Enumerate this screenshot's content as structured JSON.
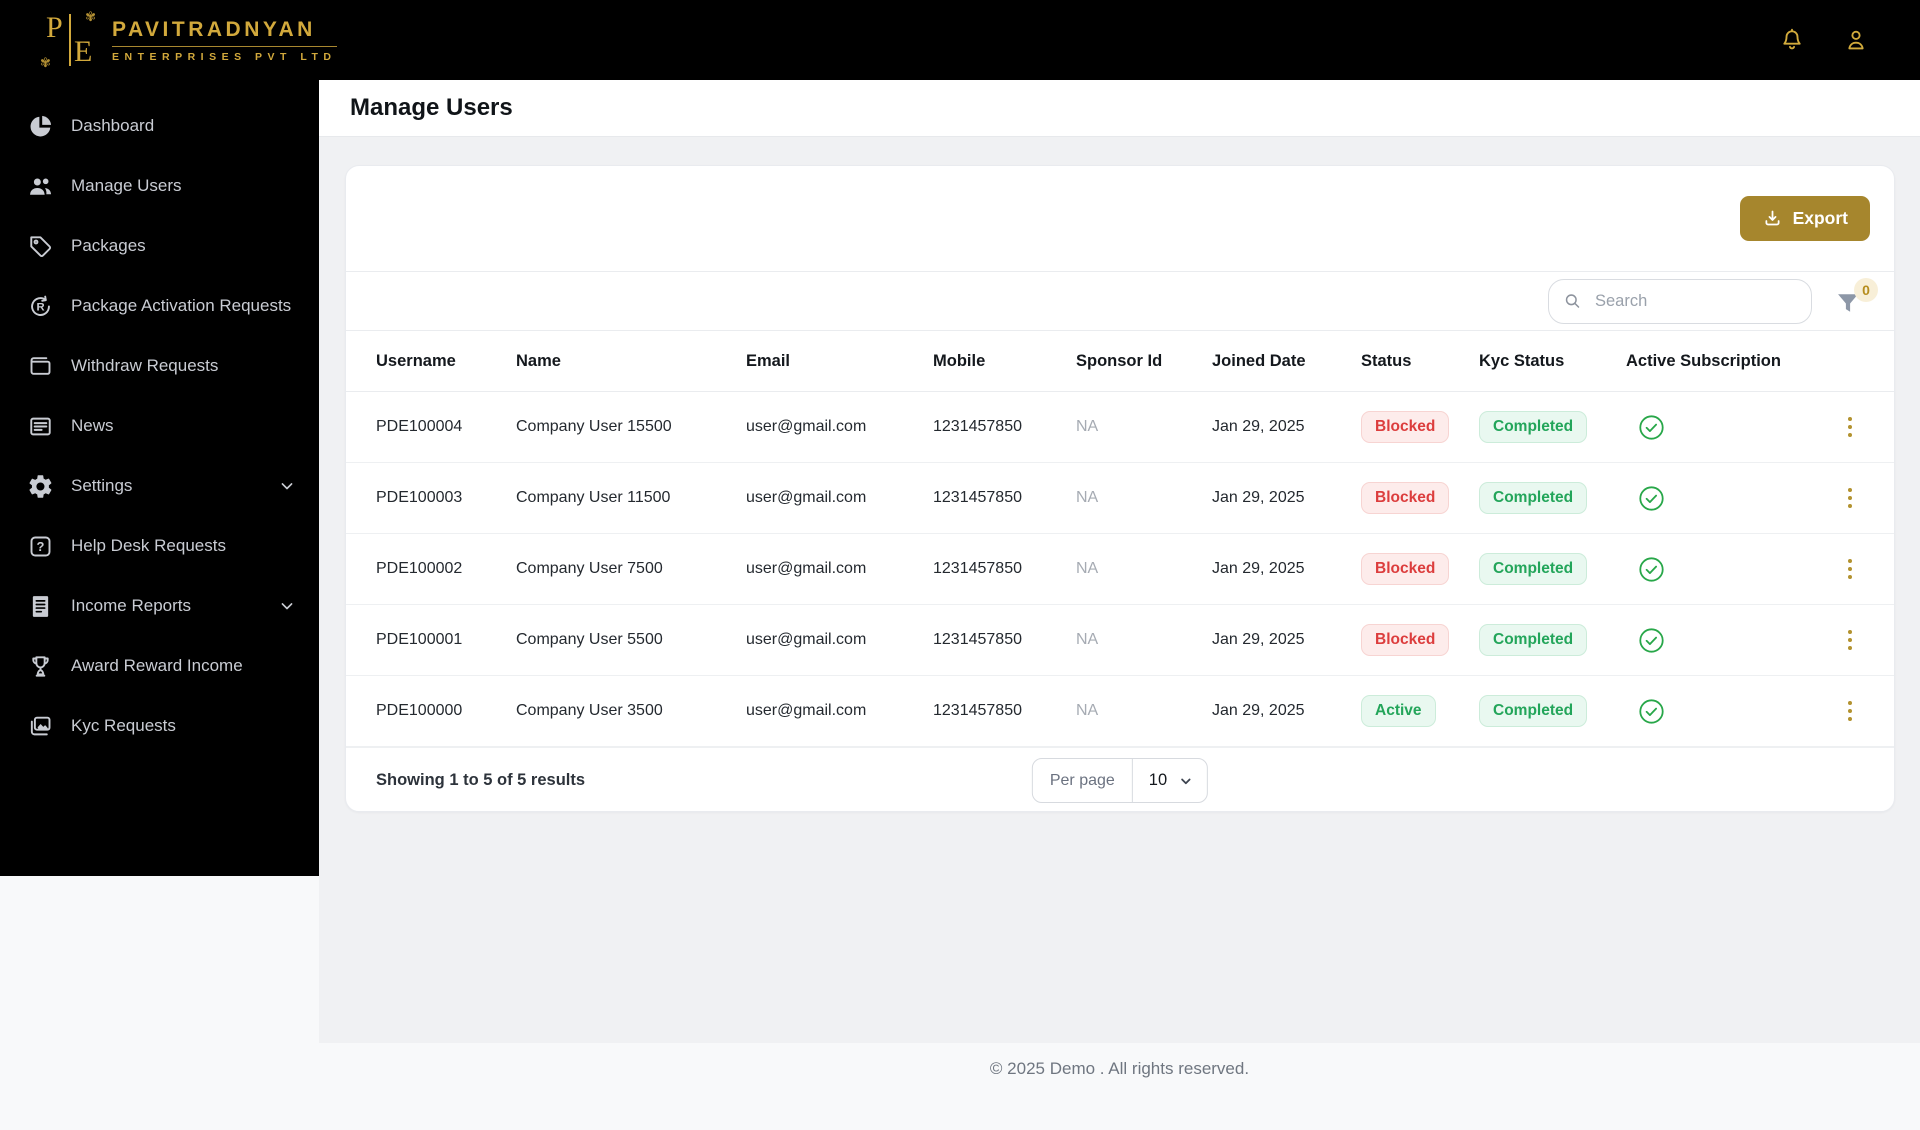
{
  "brand": {
    "mark_p": "P",
    "mark_e": "E",
    "name": "PAVITRADNYAN",
    "subtitle": "ENTERPRISES PVT LTD"
  },
  "topbar": {
    "icons": [
      "notification-bell-icon",
      "user-profile-icon"
    ]
  },
  "sidebar": {
    "items": [
      {
        "label": "Dashboard",
        "icon": "dashboard",
        "expandable": false
      },
      {
        "label": "Manage Users",
        "icon": "users",
        "expandable": false
      },
      {
        "label": "Packages",
        "icon": "tag",
        "expandable": false
      },
      {
        "label": "Package Activation Requests",
        "icon": "activation",
        "expandable": false
      },
      {
        "label": "Withdraw Requests",
        "icon": "wallet",
        "expandable": false
      },
      {
        "label": "News",
        "icon": "news",
        "expandable": false
      },
      {
        "label": "Settings",
        "icon": "gear",
        "expandable": true
      },
      {
        "label": "Help Desk Requests",
        "icon": "help",
        "expandable": false
      },
      {
        "label": "Income Reports",
        "icon": "report",
        "expandable": true
      },
      {
        "label": "Award Reward Income",
        "icon": "trophy",
        "expandable": false
      },
      {
        "label": "Kyc Requests",
        "icon": "images",
        "expandable": false
      }
    ]
  },
  "page": {
    "title": "Manage Users"
  },
  "toolbar": {
    "export_label": "Export"
  },
  "search": {
    "placeholder": "Search",
    "filter_badge": "0"
  },
  "table": {
    "headers": [
      {
        "key": "username",
        "label": "Username"
      },
      {
        "key": "name",
        "label": "Name"
      },
      {
        "key": "email",
        "label": "Email"
      },
      {
        "key": "mobile",
        "label": "Mobile"
      },
      {
        "key": "sponsor_id",
        "label": "Sponsor Id"
      },
      {
        "key": "joined_date",
        "label": "Joined Date"
      },
      {
        "key": "status",
        "label": "Status"
      },
      {
        "key": "kyc_status",
        "label": "Kyc Status"
      },
      {
        "key": "active_subscription",
        "label": "Active Subscription"
      }
    ],
    "rows": [
      {
        "username": "PDE100004",
        "name": "Company User 15500",
        "email": "user@gmail.com",
        "mobile": "1231457850",
        "sponsor_id": "NA",
        "joined_date": "Jan 29, 2025",
        "status": "Blocked",
        "kyc_status": "Completed",
        "active_subscription": true
      },
      {
        "username": "PDE100003",
        "name": "Company User 11500",
        "email": "user@gmail.com",
        "mobile": "1231457850",
        "sponsor_id": "NA",
        "joined_date": "Jan 29, 2025",
        "status": "Blocked",
        "kyc_status": "Completed",
        "active_subscription": true
      },
      {
        "username": "PDE100002",
        "name": "Company User 7500",
        "email": "user@gmail.com",
        "mobile": "1231457850",
        "sponsor_id": "NA",
        "joined_date": "Jan 29, 2025",
        "status": "Blocked",
        "kyc_status": "Completed",
        "active_subscription": true
      },
      {
        "username": "PDE100001",
        "name": "Company User 5500",
        "email": "user@gmail.com",
        "mobile": "1231457850",
        "sponsor_id": "NA",
        "joined_date": "Jan 29, 2025",
        "status": "Blocked",
        "kyc_status": "Completed",
        "active_subscription": true
      },
      {
        "username": "PDE100000",
        "name": "Company User 3500",
        "email": "user@gmail.com",
        "mobile": "1231457850",
        "sponsor_id": "NA",
        "joined_date": "Jan 29, 2025",
        "status": "Active",
        "kyc_status": "Completed",
        "active_subscription": true
      }
    ]
  },
  "pagination": {
    "summary": "Showing 1 to 5 of 5 results",
    "per_page_label": "Per page",
    "per_page_value": "10"
  },
  "footer": {
    "copyright": "© 2025 Demo . All rights reserved."
  },
  "colors": {
    "accent_gold": "#d2a93c",
    "export_button_gold": "#a6862d",
    "status_blocked_red": "#dc3d3d",
    "status_active_green": "#23a55a",
    "kyc_completed_green": "#23a55a",
    "sidebar_background": "#000000",
    "content_background": "#f0f1f3"
  }
}
